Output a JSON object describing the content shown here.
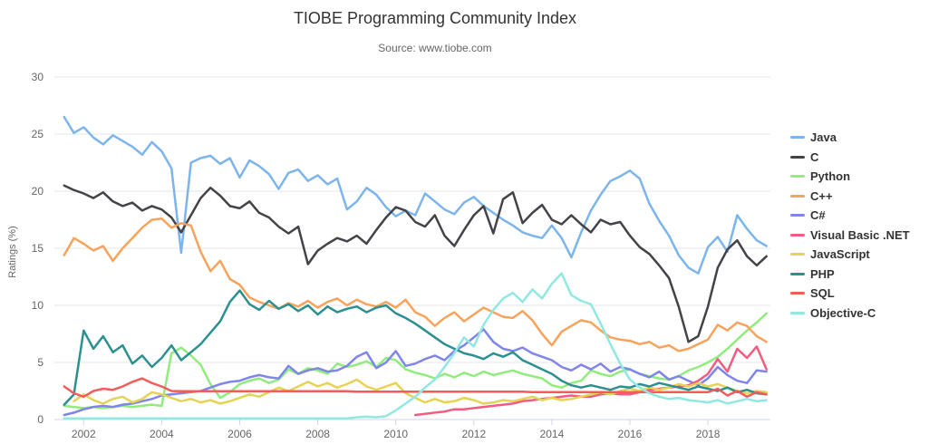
{
  "chart_data": {
    "type": "line",
    "title": "TIOBE Programming Community Index",
    "subtitle": "Source: www.tiobe.com",
    "ylabel": "Ratings (%)",
    "ylim": [
      0,
      30
    ],
    "xlim": [
      2001.25,
      2019.6
    ],
    "y_ticks": [
      0,
      5,
      10,
      15,
      20,
      25,
      30
    ],
    "x_ticks": [
      2002,
      2004,
      2006,
      2008,
      2010,
      2012,
      2014,
      2016,
      2018
    ],
    "x_start": 2001.5,
    "x_step": 0.25,
    "grid": "horizontal-only",
    "legend_position": "right",
    "colors": {
      "grid": "#e6e6e6",
      "axis_line": "#ccd6eb",
      "axis_text": "#666666",
      "title_text": "#333333",
      "legend_text": "#333333"
    },
    "series": [
      {
        "name": "Java",
        "color": "#7cb5ec",
        "values": [
          26.5,
          25.1,
          25.6,
          24.7,
          24.1,
          24.9,
          24.4,
          23.9,
          23.2,
          24.3,
          23.5,
          22.0,
          14.6,
          22.5,
          22.9,
          23.1,
          22.4,
          22.9,
          21.2,
          22.7,
          22.2,
          21.5,
          20.2,
          21.6,
          21.9,
          20.9,
          21.4,
          20.6,
          21.1,
          18.4,
          19.1,
          20.3,
          19.7,
          18.6,
          17.8,
          18.3,
          17.9,
          19.8,
          19.1,
          18.4,
          18.0,
          19.0,
          19.5,
          18.7,
          18.1,
          17.5,
          17.0,
          16.4,
          16.1,
          15.9,
          17.0,
          15.9,
          14.2,
          16.4,
          18.3,
          19.7,
          20.9,
          21.3,
          21.8,
          21.1,
          18.9,
          17.4,
          16.1,
          14.4,
          13.3,
          12.8,
          15.1,
          16.0,
          14.7,
          17.9,
          16.7,
          15.7,
          15.2
        ]
      },
      {
        "name": "C",
        "color": "#434348",
        "values": [
          20.5,
          20.1,
          19.8,
          19.4,
          19.9,
          19.1,
          18.7,
          19.0,
          18.3,
          18.7,
          18.4,
          17.7,
          16.4,
          17.9,
          19.4,
          20.3,
          19.6,
          18.7,
          18.5,
          19.1,
          18.1,
          17.7,
          16.9,
          16.3,
          16.9,
          13.6,
          14.8,
          15.4,
          15.9,
          15.6,
          16.1,
          15.4,
          16.6,
          17.7,
          18.6,
          18.3,
          17.3,
          16.9,
          17.9,
          16.1,
          15.2,
          16.6,
          17.9,
          18.7,
          16.3,
          19.3,
          19.9,
          17.2,
          18.1,
          18.8,
          17.5,
          17.1,
          17.9,
          17.1,
          16.4,
          17.5,
          17.1,
          17.3,
          16.1,
          15.1,
          14.5,
          13.5,
          12.4,
          9.9,
          6.8,
          7.3,
          9.9,
          13.3,
          14.9,
          15.7,
          14.3,
          13.5,
          14.3
        ]
      },
      {
        "name": "Python",
        "color": "#90ed7d",
        "values": [
          1.2,
          1.1,
          1.0,
          1.1,
          1.0,
          1.1,
          1.2,
          1.1,
          1.2,
          1.3,
          1.2,
          5.8,
          6.3,
          5.6,
          4.8,
          3.1,
          1.9,
          2.4,
          3.1,
          3.4,
          3.6,
          3.2,
          3.5,
          4.4,
          4.0,
          4.5,
          4.3,
          4.0,
          4.9,
          4.6,
          4.8,
          5.1,
          4.6,
          5.4,
          5.2,
          4.4,
          4.1,
          3.9,
          3.6,
          4.0,
          3.7,
          4.1,
          3.8,
          4.2,
          3.9,
          4.1,
          4.3,
          4.0,
          3.8,
          3.6,
          3.0,
          2.8,
          3.2,
          3.4,
          4.3,
          4.0,
          3.8,
          4.2,
          4.4,
          4.0,
          3.8,
          3.6,
          3.5,
          3.8,
          4.3,
          4.6,
          5.0,
          5.5,
          6.2,
          7.0,
          7.8,
          8.5,
          9.3
        ]
      },
      {
        "name": "C++",
        "color": "#f7a35c",
        "values": [
          14.4,
          15.9,
          15.4,
          14.8,
          15.2,
          13.9,
          15.0,
          15.9,
          16.8,
          17.5,
          17.6,
          16.8,
          17.2,
          17.0,
          14.7,
          13.0,
          13.9,
          12.3,
          11.8,
          10.7,
          10.3,
          10.0,
          9.7,
          10.2,
          9.9,
          10.4,
          9.8,
          10.3,
          10.6,
          10.0,
          10.5,
          10.1,
          9.9,
          10.3,
          9.8,
          10.5,
          9.4,
          9.0,
          8.2,
          8.9,
          9.4,
          8.6,
          9.2,
          9.8,
          9.4,
          9.0,
          8.9,
          9.5,
          8.7,
          7.5,
          6.5,
          7.7,
          8.2,
          8.7,
          8.5,
          7.8,
          7.2,
          7.0,
          6.9,
          6.6,
          6.8,
          6.3,
          6.5,
          6.0,
          6.2,
          6.6,
          7.0,
          8.3,
          7.8,
          8.5,
          8.2,
          7.3,
          6.8
        ]
      },
      {
        "name": "C#",
        "color": "#8085e9",
        "values": [
          0.4,
          0.6,
          0.9,
          1.1,
          1.2,
          1.1,
          1.3,
          1.4,
          1.6,
          1.8,
          2.1,
          2.2,
          2.3,
          2.4,
          2.5,
          2.8,
          3.1,
          3.3,
          3.4,
          3.7,
          3.9,
          3.7,
          3.6,
          4.7,
          4.0,
          4.3,
          4.5,
          4.2,
          4.3,
          4.7,
          5.5,
          5.9,
          4.5,
          5.0,
          6.0,
          4.7,
          4.9,
          5.3,
          5.6,
          5.2,
          6.0,
          6.5,
          7.2,
          7.9,
          6.8,
          6.2,
          6.0,
          6.3,
          5.8,
          5.5,
          5.2,
          4.6,
          4.3,
          4.8,
          4.4,
          4.9,
          4.2,
          4.6,
          4.4,
          4.0,
          3.7,
          4.2,
          3.5,
          3.8,
          3.4,
          3.0,
          3.6,
          4.6,
          3.9,
          3.4,
          3.2,
          4.3,
          4.2
        ]
      },
      {
        "name": "Visual Basic .NET",
        "color": "#f15c80",
        "values": [
          null,
          null,
          null,
          null,
          null,
          null,
          null,
          null,
          null,
          null,
          null,
          null,
          null,
          null,
          null,
          null,
          null,
          null,
          null,
          null,
          null,
          null,
          null,
          null,
          null,
          null,
          null,
          null,
          null,
          null,
          null,
          null,
          null,
          null,
          null,
          null,
          0.4,
          0.5,
          0.6,
          0.7,
          0.9,
          0.9,
          1.0,
          1.1,
          1.2,
          1.3,
          1.4,
          1.6,
          1.7,
          1.8,
          1.9,
          2.0,
          2.1,
          2.0,
          2.0,
          2.2,
          2.3,
          2.2,
          2.2,
          2.4,
          2.6,
          2.7,
          2.8,
          2.9,
          3.0,
          3.4,
          4.0,
          5.3,
          4.2,
          6.2,
          5.4,
          6.4,
          4.4
        ]
      },
      {
        "name": "JavaScript",
        "color": "#e4d354",
        "values": [
          null,
          1.6,
          2.2,
          1.7,
          1.4,
          1.8,
          2.0,
          1.5,
          1.8,
          2.4,
          2.2,
          1.9,
          1.6,
          1.8,
          1.5,
          1.7,
          1.4,
          1.6,
          1.9,
          2.2,
          2.0,
          2.4,
          2.8,
          2.5,
          2.9,
          3.3,
          2.9,
          3.2,
          2.8,
          3.1,
          3.5,
          2.9,
          2.6,
          2.9,
          3.2,
          2.3,
          1.9,
          1.5,
          1.8,
          1.5,
          1.6,
          1.9,
          1.7,
          1.4,
          1.5,
          1.7,
          1.6,
          1.8,
          2.0,
          1.7,
          1.9,
          1.7,
          1.8,
          2.0,
          2.2,
          2.4,
          2.2,
          2.5,
          2.7,
          2.5,
          2.8,
          2.6,
          2.8,
          3.1,
          2.9,
          3.2,
          2.9,
          3.1,
          2.8,
          2.5,
          2.3,
          2.5,
          2.4
        ]
      },
      {
        "name": "PHP",
        "color": "#2b908f",
        "values": [
          1.3,
          2.2,
          7.8,
          6.2,
          7.3,
          5.9,
          6.5,
          4.9,
          5.6,
          4.6,
          5.4,
          6.5,
          5.2,
          5.9,
          6.6,
          7.6,
          8.6,
          10.3,
          11.3,
          10.1,
          9.6,
          10.4,
          9.7,
          10.1,
          9.5,
          10.0,
          9.2,
          9.9,
          9.4,
          9.7,
          9.9,
          9.4,
          9.8,
          10.0,
          9.3,
          8.9,
          8.4,
          7.8,
          7.2,
          6.6,
          6.2,
          5.8,
          5.6,
          5.3,
          5.8,
          5.5,
          5.9,
          5.2,
          4.8,
          4.4,
          4.0,
          3.4,
          3.0,
          2.8,
          3.0,
          2.8,
          2.6,
          2.9,
          2.8,
          3.1,
          2.9,
          3.2,
          3.0,
          2.8,
          2.6,
          2.9,
          2.7,
          2.5,
          2.8,
          2.4,
          2.6,
          2.3,
          2.2
        ]
      },
      {
        "name": "SQL",
        "color": "#f45b5b",
        "values": [
          2.9,
          2.3,
          2.0,
          2.5,
          2.7,
          2.6,
          2.9,
          3.3,
          3.6,
          3.2,
          2.9,
          2.5,
          2.48,
          2.48,
          2.48,
          2.48,
          2.48,
          2.48,
          2.48,
          2.48,
          2.48,
          2.48,
          2.48,
          2.48,
          2.48,
          2.48,
          2.48,
          2.48,
          2.48,
          2.48,
          2.44,
          2.44,
          2.44,
          2.44,
          2.44,
          2.44,
          2.44,
          2.44,
          2.44,
          2.44,
          2.44,
          2.44,
          2.44,
          2.44,
          2.44,
          2.44,
          2.44,
          2.44,
          2.4,
          2.4,
          2.4,
          2.4,
          2.4,
          2.4,
          2.4,
          2.4,
          2.4,
          2.4,
          2.4,
          2.4,
          2.4,
          2.4,
          2.4,
          2.4,
          2.4,
          2.4,
          2.4,
          2.7,
          2.1,
          2.5,
          2.0,
          2.4,
          2.2
        ]
      },
      {
        "name": "Objective-C",
        "color": "#91e8e1",
        "values": [
          0.1,
          0.1,
          0.1,
          0.1,
          0.1,
          0.1,
          0.1,
          0.1,
          0.1,
          0.1,
          0.1,
          0.1,
          0.1,
          0.1,
          0.1,
          0.1,
          0.1,
          0.1,
          0.1,
          0.1,
          0.1,
          0.1,
          0.1,
          0.1,
          0.1,
          0.1,
          0.1,
          0.1,
          0.1,
          0.1,
          0.2,
          0.25,
          0.2,
          0.3,
          0.8,
          1.4,
          2.0,
          2.8,
          3.5,
          4.6,
          5.8,
          7.2,
          6.4,
          8.3,
          9.6,
          10.6,
          11.1,
          10.3,
          11.4,
          10.6,
          11.9,
          12.8,
          10.9,
          10.4,
          10.1,
          8.4,
          6.6,
          4.9,
          3.5,
          2.8,
          2.3,
          2.0,
          1.8,
          1.9,
          1.7,
          1.6,
          1.5,
          1.7,
          1.4,
          1.6,
          1.8,
          1.6,
          1.7
        ]
      }
    ]
  }
}
